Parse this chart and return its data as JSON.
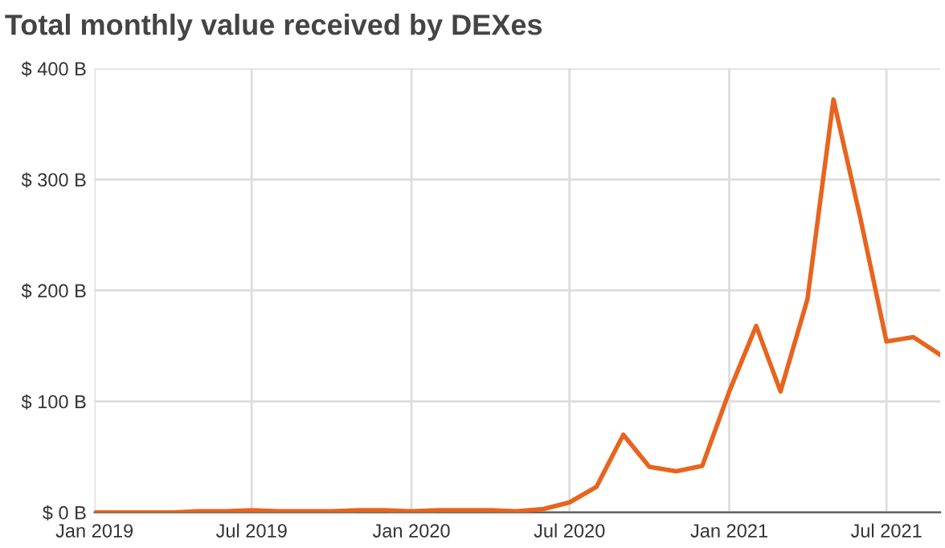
{
  "chart_data": {
    "type": "line",
    "title": "Total monthly value received by DEXes",
    "x": [
      "2019-01",
      "2019-02",
      "2019-03",
      "2019-04",
      "2019-05",
      "2019-06",
      "2019-07",
      "2019-08",
      "2019-09",
      "2019-10",
      "2019-11",
      "2019-12",
      "2020-01",
      "2020-02",
      "2020-03",
      "2020-04",
      "2020-05",
      "2020-06",
      "2020-07",
      "2020-08",
      "2020-09",
      "2020-10",
      "2020-11",
      "2020-12",
      "2021-01",
      "2021-02",
      "2021-03",
      "2021-04",
      "2021-05",
      "2021-06",
      "2021-07",
      "2021-08",
      "2021-09"
    ],
    "series": [
      {
        "color": "#e8641e",
        "values": [
          0,
          0,
          0,
          0,
          1,
          1,
          2,
          1,
          1,
          1,
          2,
          2,
          1,
          2,
          2,
          2,
          1,
          3,
          9,
          23,
          70,
          41,
          37,
          42,
          109,
          168,
          109,
          192,
          372,
          265,
          154,
          158,
          142
        ]
      }
    ],
    "xlim": [
      "2019-01",
      "2021-09"
    ],
    "xticks": [
      {
        "value": "2019-01",
        "label": "Jan 2019"
      },
      {
        "value": "2019-07",
        "label": "Jul 2019"
      },
      {
        "value": "2020-01",
        "label": "Jan 2020"
      },
      {
        "value": "2020-07",
        "label": "Jul 2020"
      },
      {
        "value": "2021-01",
        "label": "Jan 2021"
      },
      {
        "value": "2021-07",
        "label": "Jul 2021"
      }
    ],
    "ylim": [
      0,
      400
    ],
    "yticks": [
      {
        "value": 0,
        "label": "$ 0 B"
      },
      {
        "value": 100,
        "label": "$ 100 B"
      },
      {
        "value": 200,
        "label": "$ 200 B"
      },
      {
        "value": 300,
        "label": "$ 300 B"
      },
      {
        "value": 400,
        "label": "$ 400 B"
      }
    ],
    "grid": true
  }
}
